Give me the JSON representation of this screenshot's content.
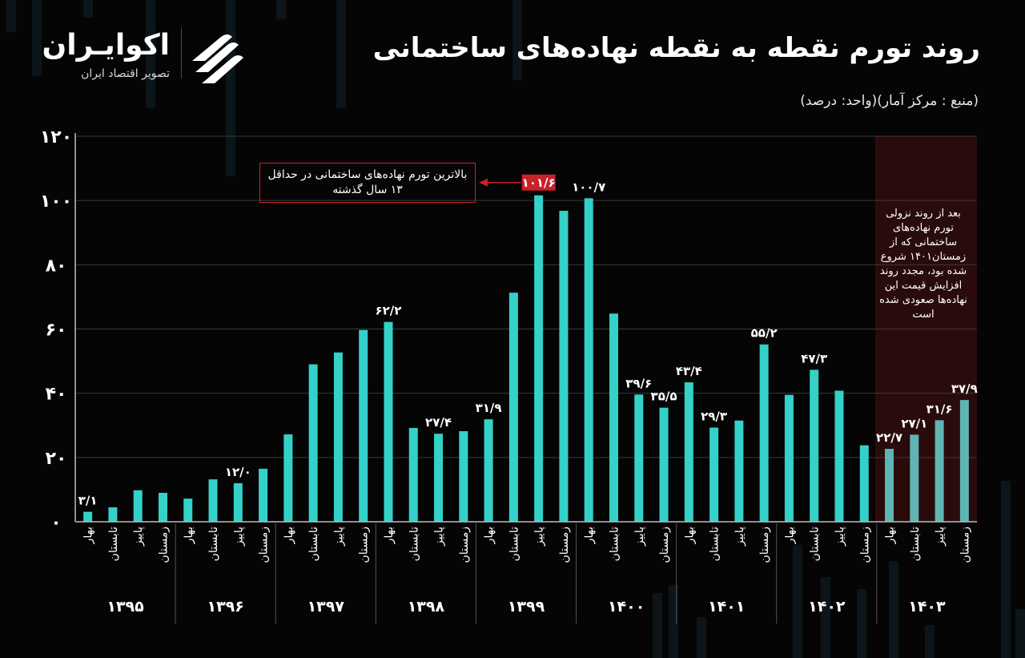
{
  "header": {
    "title": "روند تورم نقطه به نقطه نهاده‌های ساختمانی",
    "source": "(منبع : مرکز آمار)(واحد: درصد)"
  },
  "logo": {
    "name": "اکوایـران",
    "tagline": "تصویر اقتصاد ایران"
  },
  "annotations": {
    "callout": "بالاترین تورم نهاده‌های ساختمانی در حداقل ۱۳ سال گذشته",
    "note": "بعد از روند نزولی تورم نهاده‌های ساختمانی که از زمستان۱۴۰۱ شروع شده بود، مجدد روند افزایش قیمت این نهاده‌ها صعودی شده است"
  },
  "colors": {
    "bar": "#34d1c9",
    "bar_highlight": "#5fb5b1",
    "highlight_band": "#2a0b0b",
    "accent_red": "#c9202a",
    "grid": "#3a3a3a"
  },
  "chart_data": {
    "type": "bar",
    "title": "روند تورم نقطه به نقطه نهاده‌های ساختمانی",
    "ylabel": "",
    "xlabel": "",
    "ylim": [
      0,
      120
    ],
    "yticks": [
      0,
      20,
      40,
      60,
      80,
      100,
      120
    ],
    "ytick_labels": [
      "۰",
      "۲۰",
      "۴۰",
      "۶۰",
      "۸۰",
      "۱۰۰",
      "۱۲۰"
    ],
    "grid": true,
    "seasons": [
      "بهار",
      "تابستان",
      "پاییز",
      "زمستان"
    ],
    "years": [
      "۱۳۹۵",
      "۱۳۹۶",
      "۱۳۹۷",
      "۱۳۹۸",
      "۱۳۹۹",
      "۱۴۰۰",
      "۱۴۰۱",
      "۱۴۰۲",
      "۱۴۰۳"
    ],
    "values": [
      3.1,
      4.5,
      9.8,
      9.0,
      7.2,
      13.2,
      12.0,
      16.5,
      27.2,
      49.0,
      52.7,
      59.7,
      62.2,
      29.2,
      27.4,
      28.2,
      31.9,
      71.3,
      101.6,
      96.8,
      100.7,
      64.8,
      39.6,
      35.5,
      43.4,
      29.3,
      31.5,
      55.2,
      39.5,
      47.3,
      40.8,
      23.8,
      22.7,
      27.1,
      31.6,
      37.9
    ],
    "value_labels": {
      "0": "۳/۱",
      "6": "۱۲/۰",
      "12": "۶۲/۲",
      "14": "۲۷/۴",
      "16": "۳۱/۹",
      "18": "۱۰۱/۶",
      "20": "۱۰۰/۷",
      "22": "۳۹/۶",
      "23": "۳۵/۵",
      "24": "۴۳/۴",
      "25": "۲۹/۳",
      "27": "۵۵/۲",
      "29": "۴۷/۳",
      "32": "۲۲/۷",
      "33": "۲۷/۱",
      "34": "۳۱/۶",
      "35": "۳۷/۹"
    },
    "highlight_index": 18,
    "highlight_range": [
      32,
      35
    ]
  }
}
